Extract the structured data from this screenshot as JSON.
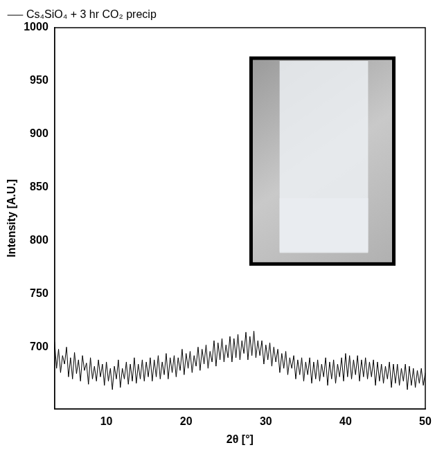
{
  "chart_data": {
    "type": "line",
    "x_label": "2θ [°]",
    "y_label": "Intensity [A.U.]",
    "legend": "upper left",
    "grid": false,
    "xlim": [
      3.5,
      50
    ],
    "xticks": [
      10,
      20,
      30,
      40,
      50
    ],
    "ylim": [
      642,
      1000
    ],
    "yticks": [
      700,
      750,
      800,
      850,
      900,
      950,
      1000
    ],
    "x": [
      3.5,
      3.75,
      4,
      4.25,
      4.5,
      4.75,
      5,
      5.25,
      5.5,
      5.75,
      6,
      6.25,
      6.5,
      6.75,
      7,
      7.25,
      7.5,
      7.75,
      8,
      8.25,
      8.5,
      8.75,
      9,
      9.25,
      9.5,
      9.75,
      10,
      10.25,
      10.5,
      10.75,
      11,
      11.25,
      11.5,
      11.75,
      12,
      12.25,
      12.5,
      12.75,
      13,
      13.25,
      13.5,
      13.75,
      14,
      14.25,
      14.5,
      14.75,
      15,
      15.25,
      15.5,
      15.75,
      16,
      16.25,
      16.5,
      16.75,
      17,
      17.25,
      17.5,
      17.75,
      18,
      18.25,
      18.5,
      18.75,
      19,
      19.25,
      19.5,
      19.75,
      20,
      20.25,
      20.5,
      20.75,
      21,
      21.25,
      21.5,
      21.75,
      22,
      22.25,
      22.5,
      22.75,
      23,
      23.25,
      23.5,
      23.75,
      24,
      24.25,
      24.5,
      24.75,
      25,
      25.25,
      25.5,
      25.75,
      26,
      26.25,
      26.5,
      26.75,
      27,
      27.25,
      27.5,
      27.75,
      28,
      28.25,
      28.5,
      28.75,
      29,
      29.25,
      29.5,
      29.75,
      30,
      30.25,
      30.5,
      30.75,
      31,
      31.25,
      31.5,
      31.75,
      32,
      32.25,
      32.5,
      32.75,
      33,
      33.25,
      33.5,
      33.75,
      34,
      34.25,
      34.5,
      34.75,
      35,
      35.25,
      35.5,
      35.75,
      36,
      36.25,
      36.5,
      36.75,
      37,
      37.25,
      37.5,
      37.75,
      38,
      38.25,
      38.5,
      38.75,
      39,
      39.25,
      39.5,
      39.75,
      40,
      40.25,
      40.5,
      40.75,
      41,
      41.25,
      41.5,
      41.75,
      42,
      42.25,
      42.5,
      42.75,
      43,
      43.25,
      43.5,
      43.75,
      44,
      44.25,
      44.5,
      44.75,
      45,
      45.25,
      45.5,
      45.75,
      46,
      46.25,
      46.5,
      46.75,
      47,
      47.25,
      47.5,
      47.75,
      48,
      48.25,
      48.5,
      48.75,
      49,
      49.25,
      49.5,
      49.75,
      50
    ],
    "series": [
      {
        "name": "Cs₄SiO₄ + 3 hr CO₂ precip",
        "color": "#000000",
        "values": [
          705,
          680,
          698,
          676,
          692,
          684,
          700,
          672,
          690,
          670,
          695,
          675,
          688,
          668,
          692,
          678,
          685,
          665,
          690,
          670,
          682,
          668,
          688,
          672,
          684,
          664,
          686,
          668,
          680,
          660,
          682,
          670,
          688,
          662,
          680,
          670,
          686,
          665,
          684,
          668,
          690,
          666,
          684,
          670,
          688,
          668,
          686,
          672,
          690,
          668,
          688,
          672,
          692,
          670,
          686,
          674,
          694,
          670,
          690,
          676,
          692,
          672,
          690,
          678,
          698,
          674,
          694,
          680,
          696,
          676,
          692,
          682,
          700,
          678,
          698,
          684,
          702,
          680,
          696,
          686,
          706,
          682,
          704,
          688,
          708,
          686,
          702,
          690,
          710,
          686,
          708,
          690,
          712,
          688,
          706,
          694,
          714,
          688,
          710,
          692,
          715,
          690,
          706,
          692,
          706,
          684,
          702,
          688,
          704,
          682,
          700,
          686,
          698,
          676,
          694,
          680,
          696,
          674,
          690,
          680,
          692,
          670,
          688,
          674,
          690,
          668,
          686,
          674,
          690,
          666,
          686,
          670,
          688,
          668,
          684,
          672,
          690,
          664,
          686,
          670,
          688,
          666,
          684,
          672,
          690,
          668,
          694,
          672,
          692,
          670,
          688,
          674,
          692,
          668,
          688,
          672,
          690,
          670,
          686,
          672,
          688,
          664,
          686,
          668,
          684,
          666,
          682,
          670,
          686,
          662,
          684,
          666,
          684,
          664,
          680,
          668,
          684,
          660,
          682,
          664,
          680,
          662,
          678,
          666,
          680,
          664,
          676
        ]
      }
    ]
  }
}
